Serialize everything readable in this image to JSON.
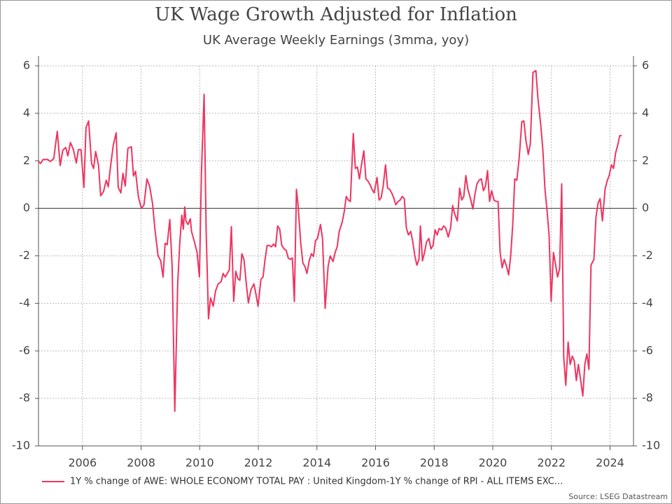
{
  "chart_data": {
    "type": "line",
    "title": "UK Wage Growth Adjusted for Inflation",
    "subtitle": "UK Average Weekly Earnings (3mma, yoy)",
    "source": "Source: LSEG Datastream",
    "xlim": [
      2004.5,
      2024.8
    ],
    "xticks": [
      2006,
      2008,
      2010,
      2012,
      2014,
      2016,
      2018,
      2020,
      2022,
      2024
    ],
    "ylim": [
      -10,
      6
    ],
    "yticks": [
      -10,
      -8,
      -6,
      -4,
      -2,
      0,
      2,
      4,
      6
    ],
    "grid": true,
    "zero_line": true,
    "mirror_y_ticks": true,
    "legend": "bottom",
    "x": [
      2004.5,
      2004.57,
      2004.66,
      2004.81,
      2004.9,
      2005.02,
      2005.14,
      2005.24,
      2005.33,
      2005.43,
      2005.5,
      2005.59,
      2005.69,
      2005.79,
      2005.86,
      2005.95,
      2006.05,
      2006.12,
      2006.21,
      2006.31,
      2006.38,
      2006.45,
      2006.55,
      2006.62,
      2006.72,
      2006.81,
      2006.88,
      2006.95,
      2007.05,
      2007.15,
      2007.22,
      2007.31,
      2007.38,
      2007.46,
      2007.55,
      2007.67,
      2007.74,
      2007.81,
      2007.91,
      2008.01,
      2008.1,
      2008.2,
      2008.29,
      2008.39,
      2008.48,
      2008.58,
      2008.67,
      2008.75,
      2008.82,
      2008.89,
      2008.98,
      2009.06,
      2009.15,
      2009.25,
      2009.32,
      2009.39,
      2009.44,
      2009.49,
      2009.53,
      2009.6,
      2009.68,
      2009.72,
      2009.82,
      2009.91,
      2009.99,
      2010.06,
      2010.15,
      2010.22,
      2010.3,
      2010.37,
      2010.46,
      2010.54,
      2010.63,
      2010.73,
      2010.8,
      2010.87,
      2010.94,
      2011.01,
      2011.08,
      2011.16,
      2011.23,
      2011.3,
      2011.37,
      2011.44,
      2011.51,
      2011.59,
      2011.66,
      2011.75,
      2011.85,
      2011.92,
      2011.99,
      2012.09,
      2012.16,
      2012.23,
      2012.3,
      2012.37,
      2012.45,
      2012.52,
      2012.59,
      2012.66,
      2012.73,
      2012.8,
      2012.88,
      2012.95,
      2013.02,
      2013.09,
      2013.16,
      2013.23,
      2013.3,
      2013.35,
      2013.45,
      2013.52,
      2013.59,
      2013.66,
      2013.73,
      2013.81,
      2013.88,
      2013.95,
      2014.02,
      2014.12,
      2014.19,
      2014.28,
      2014.38,
      2014.45,
      2014.55,
      2014.62,
      2014.69,
      2014.76,
      2014.86,
      2014.93,
      2015.0,
      2015.07,
      2015.14,
      2015.24,
      2015.31,
      2015.38,
      2015.45,
      2015.52,
      2015.6,
      2015.67,
      2015.74,
      2015.81,
      2015.88,
      2015.95,
      2016.05,
      2016.12,
      2016.19,
      2016.26,
      2016.34,
      2016.41,
      2016.48,
      2016.55,
      2016.62,
      2016.69,
      2016.77,
      2016.84,
      2016.91,
      2016.98,
      2017.05,
      2017.12,
      2017.2,
      2017.27,
      2017.34,
      2017.41,
      2017.48,
      2017.53,
      2017.6,
      2017.67,
      2017.74,
      2017.82,
      2017.89,
      2017.96,
      2018.03,
      2018.1,
      2018.17,
      2018.25,
      2018.32,
      2018.39,
      2018.48,
      2018.56,
      2018.63,
      2018.7,
      2018.79,
      2018.87,
      2018.94,
      2019.01,
      2019.08,
      2019.15,
      2019.25,
      2019.32,
      2019.39,
      2019.46,
      2019.53,
      2019.61,
      2019.68,
      2019.75,
      2019.82,
      2019.89,
      2019.96,
      2020.04,
      2020.11,
      2020.18,
      2020.25,
      2020.32,
      2020.39,
      2020.47,
      2020.54,
      2020.61,
      2020.68,
      2020.75,
      2020.82,
      2020.9,
      2020.99,
      2021.06,
      2021.13,
      2021.21,
      2021.28,
      2021.37,
      2021.47,
      2021.54,
      2021.64,
      2021.71,
      2021.78,
      2021.85,
      2021.92,
      2021.99,
      2022.07,
      2022.14,
      2022.21,
      2022.28,
      2022.35,
      2022.42,
      2022.49,
      2022.57,
      2022.64,
      2022.71,
      2022.78,
      2022.85,
      2022.92,
      2023.0,
      2023.07,
      2023.14,
      2023.21,
      2023.28,
      2023.35,
      2023.45,
      2023.52,
      2023.59,
      2023.66,
      2023.74,
      2023.83,
      2023.9,
      2023.97,
      2024.05,
      2024.12,
      2024.19,
      2024.26,
      2024.33,
      2024.4
    ],
    "series": [
      {
        "name": "1Y % change of AWE: WHOLE ECONOMY TOTAL PAY : United Kingdom-1Y % change of RPI - ALL ITEMS EXC...",
        "color": "#ee3560",
        "values": [
          1.97,
          1.89,
          2.06,
          2.06,
          1.97,
          2.09,
          3.24,
          1.8,
          2.45,
          2.56,
          2.21,
          2.77,
          2.47,
          1.91,
          2.47,
          2.47,
          0.88,
          3.39,
          3.68,
          1.89,
          1.68,
          2.39,
          1.8,
          0.53,
          0.71,
          1.18,
          0.91,
          1.68,
          2.65,
          3.18,
          0.88,
          0.65,
          1.47,
          0.94,
          2.53,
          2.59,
          1.36,
          1.56,
          0.47,
          0,
          0.15,
          1.24,
          0.94,
          0.21,
          -0.97,
          -2.0,
          -2.21,
          -2.89,
          -1.47,
          -1.53,
          -0.47,
          -2.45,
          -8.54,
          -3.15,
          -1.47,
          -0.29,
          -0.88,
          0.06,
          -0.53,
          -0.68,
          -0.44,
          -0.97,
          -1.41,
          -1.86,
          -2.89,
          1.53,
          4.8,
          -0.97,
          -4.65,
          -3.77,
          -4.12,
          -3.48,
          -3.18,
          -3.09,
          -2.74,
          -2.89,
          -2.74,
          -2.59,
          -0.77,
          -3.92,
          -2.65,
          -2.95,
          -3.03,
          -1.91,
          -2.15,
          -3.18,
          -3.98,
          -3.42,
          -3.18,
          -3.62,
          -4.12,
          -2.98,
          -2.89,
          -2.15,
          -1.56,
          -1.56,
          -1.62,
          -1.5,
          -1.62,
          -0.74,
          -0.88,
          -1.56,
          -1.71,
          -1.77,
          -2.09,
          -2.15,
          -2.09,
          -3.92,
          0.8,
          0.21,
          -1.5,
          -2.3,
          -2.45,
          -2.74,
          -2.24,
          -1.91,
          -2.03,
          -1.36,
          -1.27,
          -0.68,
          -1.27,
          -4.21,
          -2.45,
          -2.0,
          -2.24,
          -1.86,
          -1.62,
          -0.97,
          -0.59,
          -0.15,
          0.5,
          0.35,
          0.29,
          3.15,
          1.68,
          1.74,
          1.24,
          1.83,
          2.42,
          1.24,
          1.15,
          1.0,
          0.8,
          0.65,
          1.3,
          0.35,
          0.44,
          0.94,
          1.83,
          0.85,
          0.8,
          0.65,
          0.44,
          0.15,
          0.29,
          0.35,
          0.5,
          0.41,
          -0.82,
          -1.12,
          -0.97,
          -1.41,
          -2.0,
          -2.39,
          -2.15,
          -0.74,
          -2.21,
          -1.86,
          -1.41,
          -1.27,
          -1.71,
          -1.56,
          -0.91,
          -1.12,
          -0.85,
          -0.91,
          -0.74,
          -0.82,
          -1.21,
          -0.82,
          0.12,
          -0.24,
          -0.53,
          0.85,
          0.35,
          0.5,
          1.38,
          0.8,
          0.35,
          -0.03,
          0.59,
          1.03,
          1.18,
          1.24,
          0.74,
          0.94,
          1.59,
          0.29,
          0.74,
          0.35,
          0.29,
          0.29,
          -1.86,
          -2.5,
          -2.15,
          -2.45,
          -2.8,
          -2.0,
          -0.68,
          1.24,
          1.18,
          2.12,
          3.65,
          3.68,
          2.86,
          2.27,
          2.71,
          5.72,
          5.8,
          4.63,
          3.45,
          2.42,
          0.8,
          -0.09,
          -1.12,
          -3.92,
          -1.86,
          -2.36,
          -2.89,
          -2.53,
          1.03,
          -6.27,
          -7.45,
          -5.63,
          -6.57,
          -6.22,
          -6.42,
          -7.25,
          -6.57,
          -7.25,
          -7.9,
          -6.57,
          -6.13,
          -6.78,
          -2.39,
          -2.15,
          -0.38,
          0.21,
          0.41,
          -0.53,
          0.8,
          1.15,
          1.38,
          1.83,
          1.68,
          2.33,
          2.65,
          3.06,
          3.06
        ]
      }
    ]
  }
}
